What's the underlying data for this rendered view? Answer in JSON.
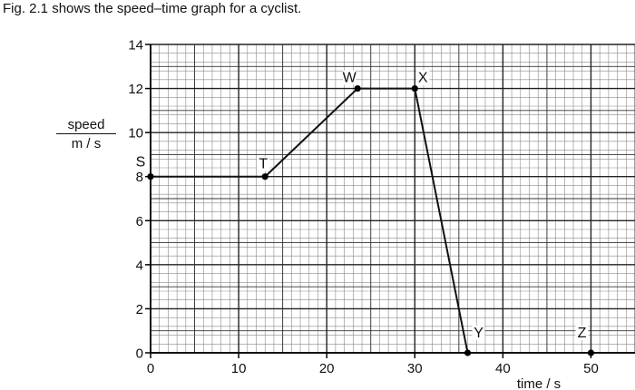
{
  "caption": "Fig. 2.1 shows the speed–time graph for a cyclist.",
  "chart_data": {
    "type": "line",
    "title": "",
    "xlabel": "time / s",
    "ylabel": {
      "numerator": "speed",
      "denominator": "m / s"
    },
    "xlim": [
      0,
      55
    ],
    "ylim": [
      0,
      14
    ],
    "grid": true,
    "x_major_step": 10,
    "x_minor_step": 1,
    "y_major_step": 2,
    "y_minor_step": 0.4,
    "xticks": [
      0,
      10,
      20,
      30,
      40,
      50
    ],
    "yticks": [
      0,
      2,
      4,
      6,
      8,
      10,
      12,
      14
    ],
    "series": [
      {
        "points": [
          {
            "label": "S",
            "x": 0,
            "y": 8
          },
          {
            "label": "T",
            "x": 13,
            "y": 8
          },
          {
            "label": "W",
            "x": 23.5,
            "y": 12
          },
          {
            "label": "X",
            "x": 30,
            "y": 12
          },
          {
            "label": "Y",
            "x": 36,
            "y": 0
          }
        ]
      }
    ],
    "extra_points": [
      {
        "label": "Z",
        "x": 50,
        "y": 0
      }
    ],
    "colors": {
      "line": "#111111",
      "grid_major": "#333333",
      "grid_minor": "#8a8a8a"
    }
  }
}
